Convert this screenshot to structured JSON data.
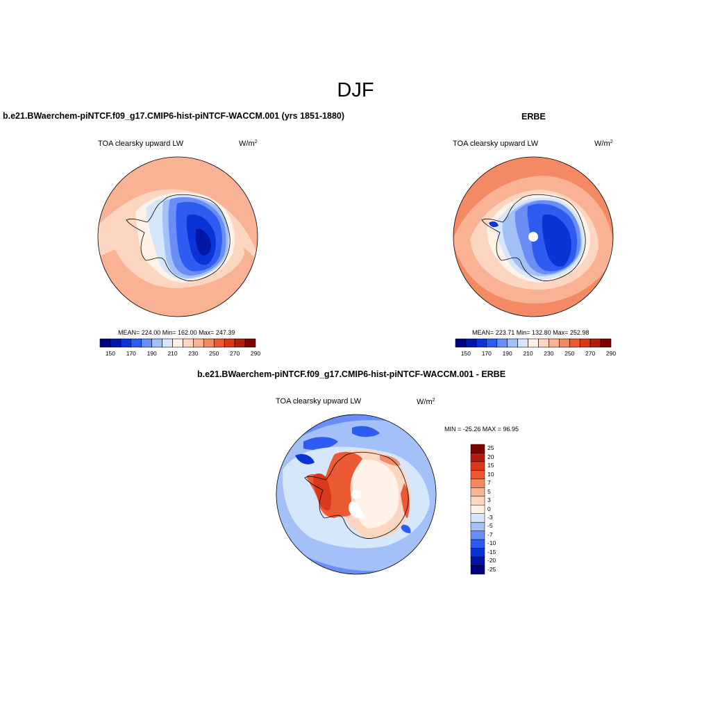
{
  "figure": {
    "title": "DJF"
  },
  "panels": [
    {
      "id": "model",
      "case_title": "b.e21.BWaerchem-piNTCF.f09_g17.CMIP6-hist-piNTCF-WACCM.001 (yrs 1851-1880)",
      "variable": "TOA clearsky upward LW",
      "units_base": "W/m",
      "units_exp": "2",
      "stats": "MEAN= 224.00  Min= 162.00  Max= 247.39",
      "colorbar_labels": [
        "150",
        "170",
        "190",
        "210",
        "230",
        "250",
        "270",
        "290"
      ]
    },
    {
      "id": "obs",
      "case_title": "ERBE",
      "variable": "TOA clearsky upward LW",
      "units_base": "W/m",
      "units_exp": "2",
      "stats": "MEAN= 223.71  Min= 132.80  Max= 252.98",
      "colorbar_labels": [
        "150",
        "170",
        "190",
        "210",
        "230",
        "250",
        "270",
        "290"
      ]
    },
    {
      "id": "diff",
      "case_title": "b.e21.BWaerchem-piNTCF.f09_g17.CMIP6-hist-piNTCF-WACCM.001 - ERBE",
      "variable": "TOA clearsky upward LW",
      "units_base": "W/m",
      "units_exp": "2",
      "stats": "MIN = -25.26 MAX =  96.95",
      "colorbar_labels": [
        "25",
        "20",
        "15",
        "10",
        "7",
        "5",
        "3",
        "0",
        "-3",
        "-5",
        "-7",
        "-10",
        "-15",
        "-20",
        "-25"
      ]
    }
  ],
  "colors": {
    "abs_scale": [
      "#00007f",
      "#0016a8",
      "#0a35d6",
      "#2f5cf0",
      "#6a8ef5",
      "#a4c0f8",
      "#d6e7fb",
      "#fff2e8",
      "#fdd6c1",
      "#f9b293",
      "#f48a63",
      "#ec5a33",
      "#d9391a",
      "#b21d0d",
      "#7f0000"
    ],
    "diff_scale": [
      "#7f0000",
      "#b21d0d",
      "#d9391a",
      "#ec5a33",
      "#f48a63",
      "#f9b293",
      "#fdd6c1",
      "#fff2e8",
      "#d6e7fb",
      "#a4c0f8",
      "#6a8ef5",
      "#2f5cf0",
      "#0a35d6",
      "#0016a8",
      "#00007f"
    ]
  }
}
